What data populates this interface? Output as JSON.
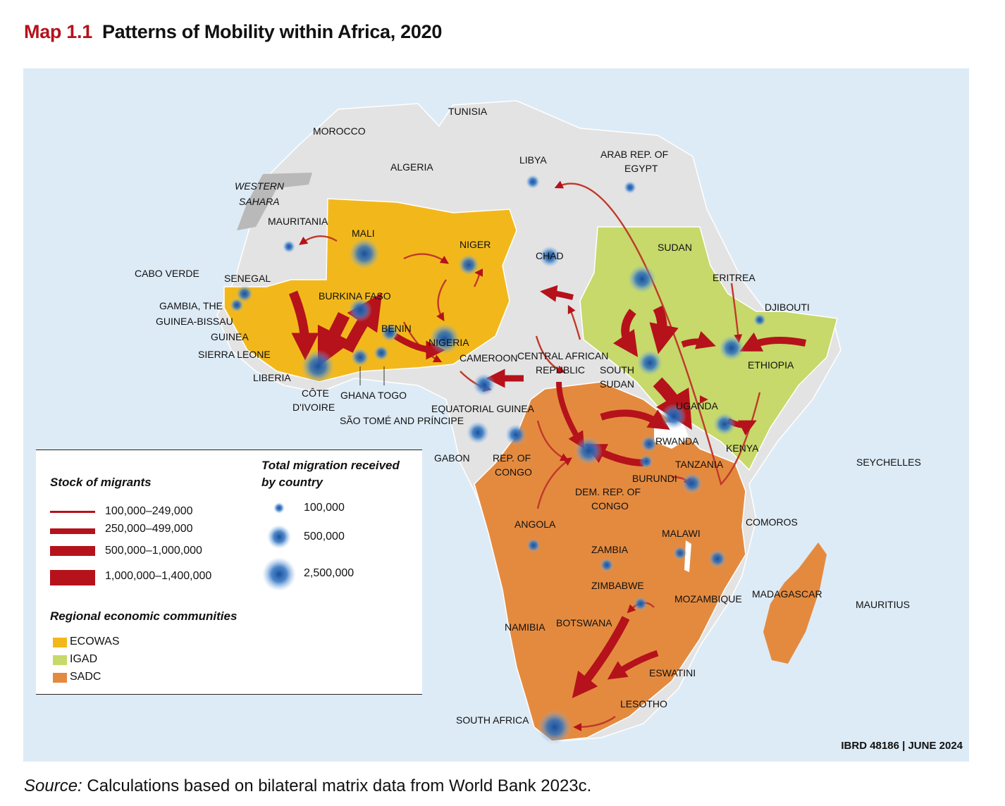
{
  "title": {
    "map_number": "Map 1.1",
    "text": "Patterns of Mobility within Africa, 2020"
  },
  "colors": {
    "ecowas": "#f2b81b",
    "igad": "#c6d96a",
    "sadc": "#e48a3f",
    "other": "#e3e3e3",
    "flow": "#b5121b",
    "bubble": "#1f5fa8",
    "sea": "#ddebf6"
  },
  "countries": {
    "tunisia": "TUNISIA",
    "morocco": "MOROCCO",
    "algeria": "ALGERIA",
    "libya": "LIBYA",
    "egypt_1": "ARAB REP. OF",
    "egypt_2": "EGYPT",
    "western_sahara_1": "WESTERN",
    "western_sahara_2": "SAHARA",
    "mauritania": "MAURITANIA",
    "mali": "MALI",
    "niger": "NIGER",
    "chad": "CHAD",
    "sudan": "SUDAN",
    "eritrea": "ERITREA",
    "djibouti": "DJIBOUTI",
    "cabo_verde": "CABO VERDE",
    "senegal": "SENEGAL",
    "gambia": "GAMBIA, THE",
    "guinea_bissau": "GUINEA-BISSAU",
    "guinea": "GUINEA",
    "sierra_leone": "SIERRA LEONE",
    "liberia": "LIBERIA",
    "burkina_faso": "BURKINA FASO",
    "benin": "BENIN",
    "nigeria": "NIGERIA",
    "cameroon": "CAMEROON",
    "car_1": "CENTRAL AFRICAN",
    "car_2": "REPUBLIC",
    "south_sudan_1": "SOUTH",
    "south_sudan_2": "SUDAN",
    "ethiopia": "ETHIOPIA",
    "cote_divoire_1": "CÔTE",
    "cote_divoire_2": "D'IVOIRE",
    "ghana": "GHANA",
    "togo": "TOGO",
    "equatorial_guinea": "EQUATORIAL GUINEA",
    "sao_tome": "SÃO TOMÉ AND PRÍNCIPE",
    "uganda": "UGANDA",
    "kenya": "KENYA",
    "rwanda": "RWANDA",
    "gabon": "GABON",
    "congo_1": "REP. OF",
    "congo_2": "CONGO",
    "seychelles": "SEYCHELLES",
    "tanzania": "TANZANIA",
    "burundi": "BURUNDI",
    "drc_1": "DEM. REP. OF",
    "drc_2": "CONGO",
    "comoros": "COMOROS",
    "angola": "ANGOLA",
    "malawi": "MALAWI",
    "zambia": "ZAMBIA",
    "zimbabwe": "ZIMBABWE",
    "mozambique": "MOZAMBIQUE",
    "madagascar": "MADAGASCAR",
    "mauritius": "MAURITIUS",
    "namibia": "NAMIBIA",
    "botswana": "BOTSWANA",
    "eswatini": "ESWATINI",
    "lesotho": "LESOTHO",
    "south_africa": "SOUTH AFRICA"
  },
  "legend": {
    "stock_header": "Stock of migrants",
    "stock_items": [
      "100,000–249,000",
      "250,000–499,000",
      "500,000–1,000,000",
      "1,000,000–1,400,000"
    ],
    "migration_header_1": "Total migration received",
    "migration_header_2": "by country",
    "migration_items": [
      "100,000",
      "500,000",
      "2,500,000"
    ],
    "rec_header": "Regional economic communities",
    "rec_items": [
      "ECOWAS",
      "IGAD",
      "SADC"
    ]
  },
  "credit": "IBRD 48186 | JUNE 2024",
  "source": {
    "label": "Source:",
    "text": " Calculations based on bilateral matrix data from World Bank 2023c."
  }
}
